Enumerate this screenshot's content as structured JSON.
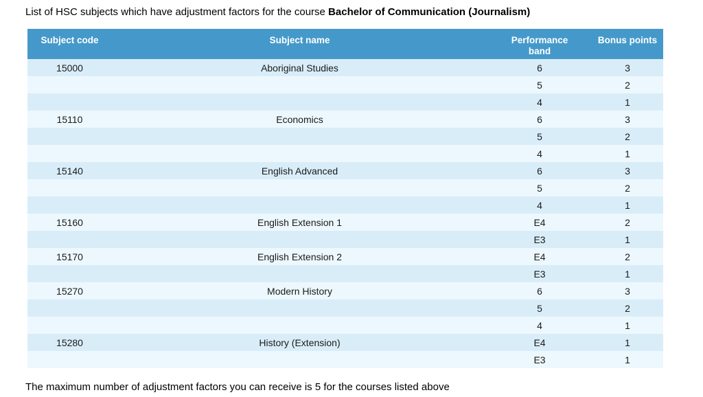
{
  "page": {
    "intro_prefix": "List of HSC subjects which have adjustment factors for the course ",
    "intro_bold": "Bachelor of Communication (Journalism)",
    "footer_note": "The maximum number of adjustment factors you can receive is 5 for the courses listed above"
  },
  "chart_data": {
    "type": "table",
    "title": "List of HSC subjects which have adjustment factors for the course Bachelor of Communication (Journalism)",
    "columns": [
      "Subject code",
      "Subject name",
      "Performance band",
      "Bonus points"
    ],
    "rows": [
      [
        "15000",
        "Aboriginal Studies",
        "6",
        "3"
      ],
      [
        "",
        "",
        "5",
        "2"
      ],
      [
        "",
        "",
        "4",
        "1"
      ],
      [
        "15110",
        "Economics",
        "6",
        "3"
      ],
      [
        "",
        "",
        "5",
        "2"
      ],
      [
        "",
        "",
        "4",
        "1"
      ],
      [
        "15140",
        "English Advanced",
        "6",
        "3"
      ],
      [
        "",
        "",
        "5",
        "2"
      ],
      [
        "",
        "",
        "4",
        "1"
      ],
      [
        "15160",
        "English Extension 1",
        "E4",
        "2"
      ],
      [
        "",
        "",
        "E3",
        "1"
      ],
      [
        "15170",
        "English Extension 2",
        "E4",
        "2"
      ],
      [
        "",
        "",
        "E3",
        "1"
      ],
      [
        "15270",
        "Modern History",
        "6",
        "3"
      ],
      [
        "",
        "",
        "5",
        "2"
      ],
      [
        "",
        "",
        "4",
        "1"
      ],
      [
        "15280",
        "History (Extension)",
        "E4",
        "1"
      ],
      [
        "",
        "",
        "E3",
        "1"
      ]
    ],
    "note": "The maximum number of adjustment factors you can receive is 5 for the courses listed above",
    "layout": {
      "header_rows": 1,
      "body_rows": 18,
      "grid": "off",
      "zebra_striping": true
    },
    "colors": {
      "header_bg": "#4599CA",
      "header_text": "#FFFFFF",
      "row_odd": "#D9EDF9",
      "row_even": "#EDF8FE",
      "body_text": "#1A1A1A"
    }
  }
}
